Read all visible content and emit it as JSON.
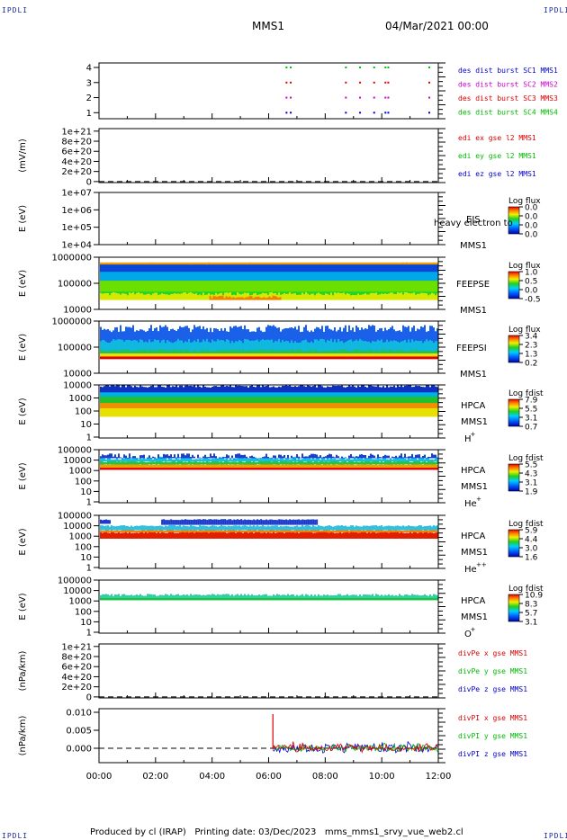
{
  "corner_label": "IPDLI",
  "header": {
    "mission": "MMS1",
    "datetime": "04/Mar/2021 00:00"
  },
  "footer": {
    "produced_by": "Produced by cl (IRAP)",
    "printing_date": "Printing date: 03/Dec/2023",
    "script": "mms_mms1_srvy_vue_web2.cl"
  },
  "chart_data": [
    {
      "type": "line",
      "panel": "des-dist",
      "ylabel": "",
      "yticks": [
        "1",
        "2",
        "3",
        "4"
      ],
      "ylim": [
        0.6,
        4.3
      ],
      "legend": [
        {
          "name": "des dist burst SC1 MMS1",
          "color": "#0000cc"
        },
        {
          "name": "des dist burst SC2 MMS2",
          "color": "#cc00cc"
        },
        {
          "name": "des dist burst SC3 MMS3",
          "color": "#dd0000"
        },
        {
          "name": "des dist burst SC4 MMS4",
          "color": "#00bb00"
        }
      ],
      "burst_hours": [
        6.6,
        6.75,
        8.7,
        9.2,
        9.7,
        10.1,
        10.2,
        11.65
      ]
    },
    {
      "type": "line",
      "panel": "edi",
      "ylabel": "(mV/m)",
      "yticks": [
        "0",
        "2e+20",
        "4e+20",
        "6e+20",
        "8e+20",
        "1e+21"
      ],
      "ylim": [
        -2e+19,
        1.05e+21
      ],
      "zero_line": true,
      "legend": [
        {
          "name": "edi ex gse l2 MMS1",
          "color": "#dd0000"
        },
        {
          "name": "edi ey gse l2 MMS1",
          "color": "#00bb00"
        },
        {
          "name": "edi ez gse l2 MMS1",
          "color": "#0000cc"
        }
      ]
    },
    {
      "type": "heatmap",
      "panel": "eis",
      "ylabel": "E (eV)",
      "yticks": [
        "1e+04",
        "1e+05",
        "1e+06",
        "1e+07"
      ],
      "scale": "log",
      "inst": "EIS",
      "inst2": "MMS1",
      "inst_note": "heavy electron to",
      "cbar_title": "Log flux",
      "cbar_ticks": [
        "0.0",
        "0.0",
        "0.0",
        "0.0"
      ]
    },
    {
      "type": "heatmap",
      "panel": "feepse",
      "ylabel": "E (eV)",
      "yticks": [
        "10000",
        "100000",
        "1000000"
      ],
      "scale": "log",
      "inst": "FEEPSE",
      "inst2": "MMS1",
      "cbar_title": "Log flux",
      "cbar_ticks": [
        "1.0",
        "0.5",
        "0.0",
        "-0.5"
      ]
    },
    {
      "type": "heatmap",
      "panel": "feepsi",
      "ylabel": "E (eV)",
      "yticks": [
        "10000",
        "100000",
        "1000000"
      ],
      "scale": "log",
      "inst": "FEEPSI",
      "inst2": "MMS1",
      "cbar_title": "Log flux",
      "cbar_ticks": [
        "3.4",
        "2.3",
        "1.3",
        "0.2"
      ]
    },
    {
      "type": "heatmap",
      "panel": "hpca-h",
      "ylabel": "E (eV)",
      "yticks": [
        "1",
        "10",
        "100",
        "1000",
        "10000"
      ],
      "scale": "log",
      "inst": "HPCA",
      "inst2": "MMS1",
      "species": "H",
      "charge": "+",
      "cbar_title": "Log fdist",
      "cbar_ticks": [
        "7.9",
        "5.5",
        "3.1",
        "0.7"
      ]
    },
    {
      "type": "heatmap",
      "panel": "hpca-he",
      "ylabel": "E (eV)",
      "yticks": [
        "1",
        "10",
        "100",
        "1000",
        "10000",
        "100000"
      ],
      "scale": "log",
      "inst": "HPCA",
      "inst2": "MMS1",
      "species": "He",
      "charge": "+",
      "cbar_title": "Log fdist",
      "cbar_ticks": [
        "5.5",
        "4.3",
        "3.1",
        "1.9"
      ]
    },
    {
      "type": "heatmap",
      "panel": "hpca-hepp",
      "ylabel": "E (eV)",
      "yticks": [
        "1",
        "10",
        "100",
        "1000",
        "10000",
        "100000"
      ],
      "scale": "log",
      "inst": "HPCA",
      "inst2": "MMS1",
      "species": "He",
      "charge": "++",
      "cbar_title": "Log fdist",
      "cbar_ticks": [
        "5.9",
        "4.4",
        "3.0",
        "1.6"
      ]
    },
    {
      "type": "heatmap",
      "panel": "hpca-o",
      "ylabel": "E (eV)",
      "yticks": [
        "1",
        "10",
        "100",
        "1000",
        "10000",
        "100000"
      ],
      "scale": "log",
      "inst": "HPCA",
      "inst2": "MMS1",
      "species": "O",
      "charge": "+",
      "cbar_title": "Log fdist",
      "cbar_ticks": [
        "10.9",
        "8.3",
        "5.7",
        "3.1"
      ]
    },
    {
      "type": "line",
      "panel": "divpe",
      "ylabel": "(nPa/km)",
      "yticks": [
        "0",
        "2e+20",
        "4e+20",
        "6e+20",
        "8e+20",
        "1e+21"
      ],
      "ylim": [
        -2e+19,
        1.05e+21
      ],
      "zero_line": true,
      "legend": [
        {
          "name": "divPe x gse MMS1",
          "color": "#dd0000"
        },
        {
          "name": "divPe y gse MMS1",
          "color": "#00bb00"
        },
        {
          "name": "divPe z gse MMS1",
          "color": "#0000cc"
        }
      ]
    },
    {
      "type": "line",
      "panel": "divpi",
      "ylabel": "(nPa/km)",
      "yticks": [
        "0.000",
        "0.005",
        "0.010"
      ],
      "ylim": [
        -0.004,
        0.011
      ],
      "zero_line": true,
      "data_start_hour": 6.15,
      "legend": [
        {
          "name": "divPI x gse MMS1",
          "color": "#dd0000"
        },
        {
          "name": "divPI y gse MMS1",
          "color": "#00bb00"
        },
        {
          "name": "divPI z gse MMS1",
          "color": "#0000cc"
        }
      ]
    }
  ],
  "time_axis": {
    "ticks": [
      "00:00",
      "02:00",
      "04:00",
      "06:00",
      "08:00",
      "10:00",
      "12:00"
    ],
    "range_hours": [
      0,
      12
    ]
  }
}
